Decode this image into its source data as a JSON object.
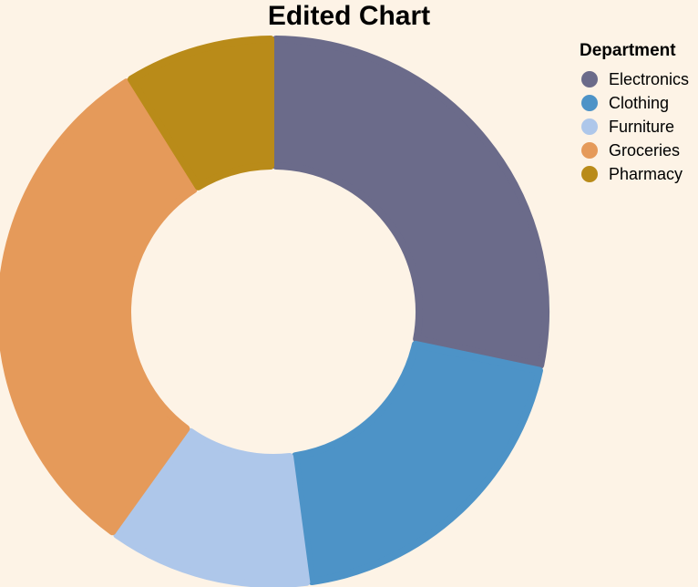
{
  "chart_data": {
    "type": "pie",
    "donut": true,
    "title": "Edited Chart",
    "legend_title": "Department",
    "legend_position": "top-right",
    "categories": [
      "Electronics",
      "Clothing",
      "Furniture",
      "Groceries",
      "Pharmacy"
    ],
    "values": [
      28.3,
      19.6,
      12.0,
      31.2,
      8.9
    ],
    "colors": [
      "#6b6b8a",
      "#4d93c7",
      "#aec7ea",
      "#e59a5a",
      "#b98b19"
    ]
  }
}
